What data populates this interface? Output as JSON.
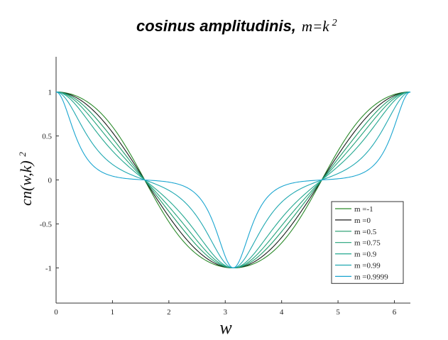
{
  "chart_data": {
    "type": "line",
    "title": "cosinus amplitudinis,",
    "title_math": "m=k",
    "title_math_sup": "2",
    "xlabel": "w",
    "ylabel": "cn(w,k)",
    "ylabel_sup": "2",
    "xlim": [
      0,
      6.2832
    ],
    "ylim": [
      -1.4,
      1.4
    ],
    "xticks": [
      "0",
      "1",
      "2",
      "3",
      "4",
      "5",
      "6"
    ],
    "yticks": [
      "1",
      "0.5",
      "0",
      "-0.5",
      "-1"
    ],
    "grid": false,
    "legend_position": "lower-right",
    "x_sampling": {
      "start": 0,
      "end": 6.2832,
      "points": 241
    },
    "series": [
      {
        "name": "m =-1",
        "m": -1,
        "color": "#2a8a2a"
      },
      {
        "name": "m =0",
        "m": 0,
        "color": "#1a1a1a"
      },
      {
        "name": "m =0.5",
        "m": 0.5,
        "color": "#1f9a6a"
      },
      {
        "name": "m =0.75",
        "m": 0.75,
        "color": "#22a27a"
      },
      {
        "name": "m =0.9",
        "m": 0.9,
        "color": "#25a890"
      },
      {
        "name": "m =0.99",
        "m": 0.99,
        "color": "#20a8b0"
      },
      {
        "name": "m =0.9999",
        "m": 0.9999,
        "color": "#1aa5d0"
      }
    ]
  }
}
